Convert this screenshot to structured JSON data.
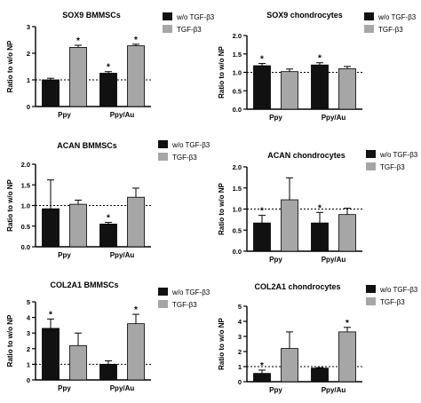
{
  "colors": {
    "bar_without": "#111111",
    "bar_with": "#a6a6a6",
    "axis": "#000000",
    "reference_line": "#000000"
  },
  "legend_labels": [
    "w/o TGF-β3",
    "TGF-β3"
  ],
  "chart_data": [
    {
      "type": "bar",
      "title": "SOX9 BMMSCs",
      "ylabel": "Ratio to w/o NP",
      "categories": [
        "Ppy",
        "Ppy/Au"
      ],
      "ylim": [
        0,
        3
      ],
      "yticks": [
        0,
        1,
        2,
        3
      ],
      "reference_line": 1,
      "series": [
        {
          "name": "w/o TGF-β3",
          "values": [
            1.0,
            1.25
          ],
          "errors": [
            0.06,
            0.06
          ],
          "significant": [
            false,
            true
          ]
        },
        {
          "name": "TGF-β3",
          "values": [
            2.22,
            2.28
          ],
          "errors": [
            0.08,
            0.06
          ],
          "significant": [
            true,
            true
          ]
        }
      ]
    },
    {
      "type": "bar",
      "title": "SOX9 chondrocytes",
      "ylabel": "Ratio to w/o NP",
      "categories": [
        "Ppy",
        "Ppy/Au"
      ],
      "ylim": [
        0,
        2
      ],
      "yticks": [
        0,
        0.5,
        1.0,
        1.5,
        2.0
      ],
      "reference_line": 1,
      "series": [
        {
          "name": "w/o TGF-β3",
          "values": [
            1.18,
            1.2
          ],
          "errors": [
            0.06,
            0.06
          ],
          "significant": [
            true,
            true
          ]
        },
        {
          "name": "TGF-β3",
          "values": [
            1.02,
            1.1
          ],
          "errors": [
            0.07,
            0.06
          ],
          "significant": [
            false,
            false
          ]
        }
      ]
    },
    {
      "type": "bar",
      "title": "ACAN BMMSCs",
      "ylabel": "Ratio to w/o NP",
      "categories": [
        "Ppy",
        "Ppy/Au"
      ],
      "ylim": [
        0,
        2
      ],
      "yticks": [
        0.0,
        0.5,
        1.0,
        1.5,
        2.0
      ],
      "reference_line": 1,
      "series": [
        {
          "name": "w/o TGF-β3",
          "values": [
            0.92,
            0.55
          ],
          "errors": [
            0.7,
            0.04
          ],
          "significant": [
            false,
            true
          ]
        },
        {
          "name": "TGF-β3",
          "values": [
            1.03,
            1.2
          ],
          "errors": [
            0.1,
            0.22
          ],
          "significant": [
            false,
            false
          ]
        }
      ]
    },
    {
      "type": "bar",
      "title": "ACAN chondrocytes",
      "ylabel": "Ratio to w/o NP",
      "categories": [
        "Ppy",
        "Ppy/Au"
      ],
      "ylim": [
        0,
        2
      ],
      "yticks": [
        0.0,
        0.5,
        1.0,
        1.5,
        2.0
      ],
      "reference_line": 1,
      "series": [
        {
          "name": "w/o TGF-β3",
          "values": [
            0.67,
            0.67
          ],
          "errors": [
            0.18,
            0.25
          ],
          "significant": [
            true,
            true
          ]
        },
        {
          "name": "TGF-β3",
          "values": [
            1.22,
            0.87
          ],
          "errors": [
            0.52,
            0.15
          ],
          "significant": [
            false,
            false
          ]
        }
      ]
    },
    {
      "type": "bar",
      "title": "COL2A1 BMMSCs",
      "ylabel": "Ratio to w/o NP",
      "categories": [
        "Ppy",
        "Ppy/Au"
      ],
      "ylim": [
        0,
        5
      ],
      "yticks": [
        0,
        1,
        2,
        3,
        4,
        5
      ],
      "reference_line": 1,
      "series": [
        {
          "name": "w/o TGF-β3",
          "values": [
            3.3,
            1.0
          ],
          "errors": [
            0.6,
            0.22
          ],
          "significant": [
            true,
            false
          ]
        },
        {
          "name": "TGF-β3",
          "values": [
            2.2,
            3.6
          ],
          "errors": [
            0.8,
            0.6
          ],
          "significant": [
            false,
            true
          ]
        }
      ]
    },
    {
      "type": "bar",
      "title": "COL2A1 chondrocytes",
      "ylabel": "Ratio to w/o NP",
      "categories": [
        "Ppy",
        "Ppy/Au"
      ],
      "ylim": [
        0,
        5
      ],
      "yticks": [
        0,
        1,
        2,
        3,
        4,
        5
      ],
      "reference_line": 1,
      "series": [
        {
          "name": "w/o TGF-β3",
          "values": [
            0.55,
            0.9
          ],
          "errors": [
            0.22,
            0.03
          ],
          "significant": [
            true,
            false
          ]
        },
        {
          "name": "TGF-β3",
          "values": [
            2.2,
            3.3
          ],
          "errors": [
            1.1,
            0.3
          ],
          "significant": [
            false,
            true
          ]
        }
      ]
    }
  ]
}
